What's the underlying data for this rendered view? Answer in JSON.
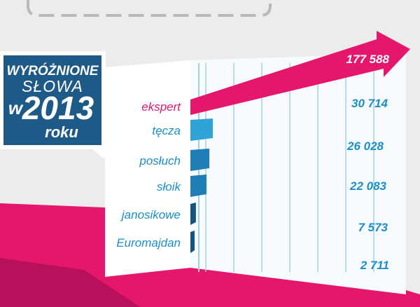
{
  "badge": {
    "line1": "WYRÓŻNIONE",
    "line2": "SŁOWA",
    "line3_prefix": "w",
    "year": "2013",
    "line4": "roku"
  },
  "colors": {
    "magenta": "#e5176d",
    "navy": "#1d5a88",
    "blue_text": "#1a8fc8",
    "bar_light": "#2fa3d6",
    "bar_mid": "#1e7eb5",
    "bar_dark": "#14547f",
    "gridline": "#9ecfe8"
  },
  "chart_data": {
    "type": "bar",
    "orientation": "horizontal",
    "categories": [
      "ekspert",
      "tęcza",
      "posłuch",
      "słoik",
      "janosikowe",
      "Euromajdan"
    ],
    "values": [
      177588,
      30714,
      26028,
      22083,
      7573,
      2711
    ],
    "value_labels": [
      "177 588",
      "30 714",
      "26 028",
      "22 083",
      "7 573",
      "2 711"
    ],
    "title": "",
    "xlabel": "",
    "ylabel": "",
    "grid": true
  }
}
